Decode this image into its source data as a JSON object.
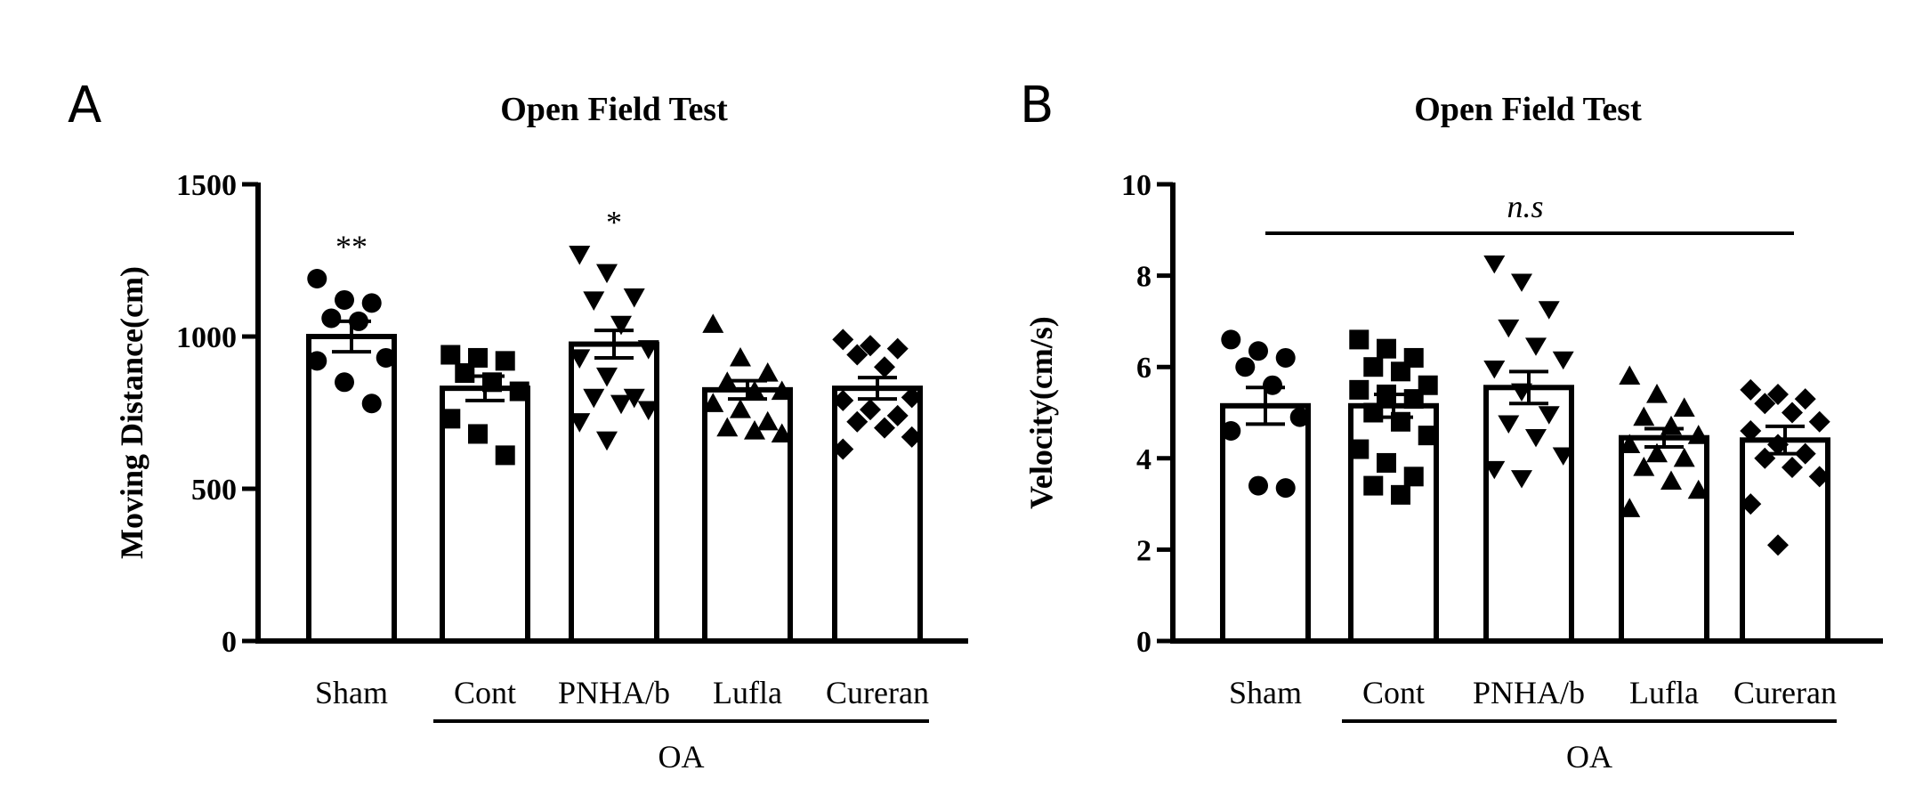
{
  "figure": {
    "panels": [
      "A",
      "B"
    ]
  },
  "chart_data": [
    {
      "type": "bar",
      "panel": "A",
      "title": "Open Field Test",
      "xlabel": "",
      "ylabel": "Moving Distance(cm)",
      "ylim": [
        0,
        1500
      ],
      "yticks": [
        "0",
        "500",
        "1000",
        "1500"
      ],
      "categories": [
        "Sham",
        "Cont",
        "PNHA/b",
        "Lufla",
        "Cureran"
      ],
      "group_label": "OA",
      "group_members": [
        "Cont",
        "PNHA/b",
        "Lufla",
        "Cureran"
      ],
      "markers": [
        "circle",
        "square",
        "triangle-down",
        "triangle-up",
        "diamond"
      ],
      "values": [
        1000,
        830,
        975,
        825,
        830
      ],
      "sem": [
        50,
        40,
        45,
        30,
        35
      ],
      "significance": [
        "**",
        "",
        "*",
        "",
        ""
      ],
      "points": [
        [
          1190,
          1120,
          1110,
          1060,
          1050,
          930,
          920,
          850,
          780
        ],
        [
          940,
          930,
          920,
          880,
          850,
          820,
          730,
          680,
          610
        ],
        [
          1270,
          1210,
          1130,
          1120,
          1040,
          960,
          930,
          870,
          800,
          800,
          780,
          760,
          720,
          660
        ],
        [
          1040,
          930,
          880,
          850,
          820,
          820,
          780,
          760,
          720,
          700,
          690,
          680
        ],
        [
          990,
          970,
          960,
          940,
          900,
          800,
          790,
          760,
          740,
          720,
          700,
          670,
          630
        ]
      ]
    },
    {
      "type": "bar",
      "panel": "B",
      "title": "Open Field Test",
      "xlabel": "",
      "ylabel": "Velocity(cm/s)",
      "ylim": [
        0,
        10
      ],
      "yticks": [
        "0",
        "2",
        "4",
        "6",
        "8",
        "10"
      ],
      "categories": [
        "Sham",
        "Cont",
        "PNHA/b",
        "Lufla",
        "Cureran"
      ],
      "group_label": "OA",
      "group_members": [
        "Cont",
        "PNHA/b",
        "Lufla",
        "Cureran"
      ],
      "markers": [
        "circle",
        "square",
        "diamond-down",
        "triangle-up",
        "diamond"
      ],
      "values": [
        5.15,
        5.15,
        5.55,
        4.45,
        4.4
      ],
      "sem": [
        0.4,
        0.25,
        0.35,
        0.2,
        0.3
      ],
      "comparison_label": "n.s",
      "points": [
        [
          6.6,
          6.35,
          6.2,
          6.0,
          5.6,
          4.9,
          4.6,
          3.4,
          3.35
        ],
        [
          6.6,
          6.4,
          6.2,
          6.0,
          5.9,
          5.6,
          5.5,
          5.4,
          5.3,
          5.0,
          4.8,
          4.5,
          4.2,
          3.9,
          3.6,
          3.4,
          3.2
        ],
        [
          8.3,
          7.9,
          7.3,
          6.9,
          6.5,
          6.2,
          6.0,
          5.5,
          5.0,
          4.8,
          4.5,
          4.1,
          3.8,
          3.6
        ],
        [
          5.8,
          5.4,
          5.1,
          4.9,
          4.7,
          4.5,
          4.3,
          4.1,
          4.0,
          3.8,
          3.5,
          3.3,
          2.9
        ],
        [
          5.5,
          5.4,
          5.3,
          5.2,
          5.0,
          4.8,
          4.6,
          4.3,
          4.1,
          4.0,
          3.8,
          3.6,
          3.0,
          2.1
        ]
      ]
    }
  ]
}
